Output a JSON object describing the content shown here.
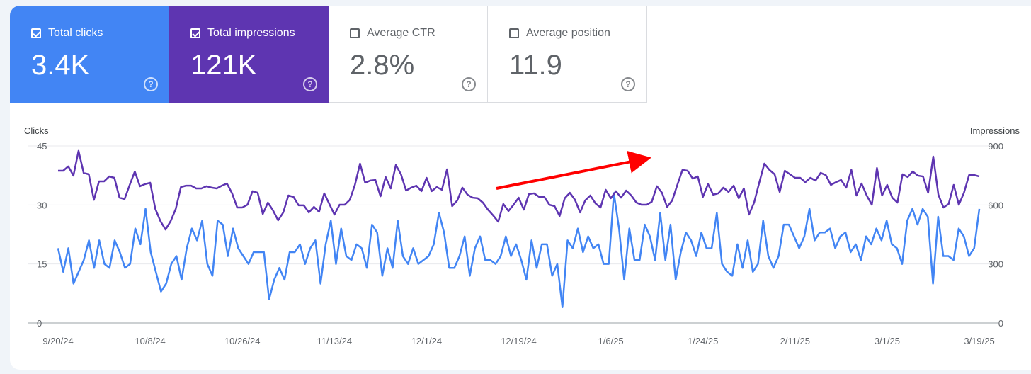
{
  "metrics": [
    {
      "label": "Total clicks",
      "value": "3.4K",
      "checked": true,
      "color": "#4285f4"
    },
    {
      "label": "Total impressions",
      "value": "121K",
      "checked": true,
      "color": "#5e35b1"
    },
    {
      "label": "Average CTR",
      "value": "2.8%",
      "checked": false
    },
    {
      "label": "Average position",
      "value": "11.9",
      "checked": false
    }
  ],
  "help_icon": "?",
  "chart_data": {
    "type": "line",
    "x_range": [
      "9/20/24",
      "3/19/25"
    ],
    "x_ticks": [
      "9/20/24",
      "10/8/24",
      "10/26/24",
      "11/13/24",
      "12/1/24",
      "12/19/24",
      "1/6/25",
      "1/24/25",
      "2/11/25",
      "3/1/25",
      "3/19/25"
    ],
    "ylabel_left": "Clicks",
    "ylabel_right": "Impressions",
    "ylim_left": [
      0,
      45
    ],
    "ylim_right": [
      0,
      900
    ],
    "yticks_left": [
      "0",
      "15",
      "30",
      "45"
    ],
    "yticks_right": [
      "0",
      "300",
      "600",
      "900"
    ],
    "grid": true,
    "annotation": "red upward-trend arrow",
    "series": [
      {
        "name": "Clicks",
        "axis": "left",
        "color": "#4285f4",
        "values": [
          19,
          13,
          19,
          10,
          13,
          16,
          21,
          14,
          21,
          15,
          14,
          21,
          18,
          14,
          15,
          24,
          20,
          29,
          18,
          13,
          8,
          10,
          15,
          17,
          11,
          19,
          24,
          21,
          26,
          15,
          12,
          26,
          25,
          17,
          24,
          19,
          17,
          15,
          18,
          18,
          18,
          6,
          11,
          14,
          11,
          18,
          18,
          20,
          15,
          19,
          21,
          10,
          20,
          26,
          15,
          24,
          17,
          16,
          20,
          19,
          14,
          25,
          23,
          12,
          19,
          14,
          26,
          17,
          15,
          19,
          15,
          16,
          17,
          20,
          28,
          23,
          14,
          14,
          17,
          22,
          12,
          19,
          22,
          16,
          16,
          15,
          17,
          22,
          17,
          20,
          16,
          11,
          21,
          14,
          20,
          20,
          12,
          15,
          4,
          21,
          19,
          24,
          18,
          22,
          19,
          20,
          15,
          15,
          33,
          24,
          11,
          24,
          16,
          16,
          25,
          22,
          16,
          28,
          16,
          25,
          11,
          18,
          23,
          21,
          17,
          23,
          19,
          19,
          28,
          15,
          13,
          12,
          20,
          14,
          21,
          13,
          15,
          26,
          17,
          14,
          17,
          25,
          25,
          22,
          19,
          22,
          29,
          21,
          23,
          23,
          24,
          19,
          22,
          23,
          18,
          20,
          16,
          22,
          20,
          24,
          21,
          26,
          20,
          19,
          15,
          26,
          29,
          25,
          29,
          27,
          10,
          27,
          17,
          17,
          16,
          24,
          22,
          17,
          19,
          29
        ]
      },
      {
        "name": "Impressions",
        "axis": "right",
        "color": "#5e35b1",
        "values": [
          774,
          774,
          796,
          749,
          875,
          763,
          756,
          626,
          720,
          720,
          745,
          738,
          637,
          630,
          702,
          770,
          695,
          706,
          713,
          580,
          518,
          475,
          518,
          580,
          691,
          698,
          698,
          684,
          684,
          695,
          688,
          684,
          698,
          709,
          659,
          587,
          587,
          601,
          670,
          662,
          554,
          612,
          572,
          522,
          562,
          648,
          641,
          598,
          598,
          562,
          590,
          565,
          659,
          605,
          551,
          601,
          601,
          626,
          702,
          810,
          713,
          724,
          727,
          644,
          742,
          684,
          803,
          756,
          673,
          688,
          698,
          670,
          738,
          670,
          691,
          677,
          781,
          594,
          623,
          688,
          652,
          637,
          634,
          612,
          576,
          547,
          515,
          605,
          569,
          601,
          637,
          576,
          655,
          659,
          641,
          641,
          601,
          594,
          544,
          634,
          662,
          626,
          562,
          623,
          648,
          608,
          587,
          677,
          634,
          670,
          637,
          673,
          648,
          612,
          601,
          601,
          616,
          695,
          662,
          590,
          623,
          702,
          778,
          774,
          734,
          745,
          641,
          706,
          652,
          659,
          688,
          666,
          698,
          634,
          684,
          551,
          612,
          713,
          810,
          778,
          756,
          666,
          774,
          756,
          738,
          738,
          716,
          738,
          724,
          763,
          752,
          702,
          716,
          727,
          688,
          778,
          648,
          709,
          648,
          601,
          788,
          648,
          702,
          637,
          612,
          756,
          742,
          770,
          749,
          745,
          662,
          846,
          652,
          587,
          605,
          702,
          601,
          662,
          752,
          752,
          745
        ]
      }
    ]
  }
}
